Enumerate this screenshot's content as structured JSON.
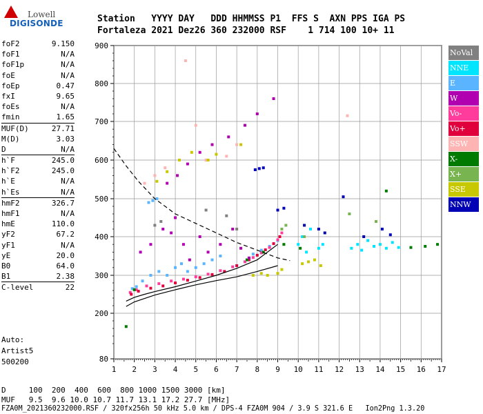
{
  "logo": {
    "line1": "Lowell",
    "line2": "DIGISONDE"
  },
  "header": {
    "labels": "Station   YYYY DAY   DDD HHMMSS P1  FFS S  AXN PPS IGA PS",
    "values": "Fortaleza 2021 Dez26 360 232000 RSF    1 714 100 10+ 11"
  },
  "params": [
    {
      "name": "foF2",
      "value": "9.150"
    },
    {
      "name": "foF1",
      "value": "N/A"
    },
    {
      "name": "foF1p",
      "value": "N/A"
    },
    {
      "name": "foE",
      "value": "N/A"
    },
    {
      "name": "foEp",
      "value": "0.47"
    },
    {
      "name": "fxI",
      "value": "9.65"
    },
    {
      "name": "foEs",
      "value": "N/A"
    },
    {
      "name": "fmin",
      "value": "1.65"
    },
    {
      "name": "MUF(D)",
      "value": "27.71"
    },
    {
      "name": "M(D)",
      "value": "3.03"
    },
    {
      "name": "D",
      "value": "N/A"
    },
    {
      "name": "h`F",
      "value": "245.0"
    },
    {
      "name": "h`F2",
      "value": "245.0"
    },
    {
      "name": "h`E",
      "value": "N/A"
    },
    {
      "name": "h`Es",
      "value": "N/A"
    },
    {
      "name": "hmF2",
      "value": "326.7"
    },
    {
      "name": "hmF1",
      "value": "N/A"
    },
    {
      "name": "hmE",
      "value": "110.0"
    },
    {
      "name": "yF2",
      "value": "67.2"
    },
    {
      "name": "yF1",
      "value": "N/A"
    },
    {
      "name": "yE",
      "value": "20.0"
    },
    {
      "name": "B0",
      "value": "64.0"
    },
    {
      "name": "B1",
      "value": "2.38"
    },
    {
      "name": "C-level",
      "value": "22"
    }
  ],
  "auto": {
    "line1": "Auto:",
    "line2": "Artist5",
    "line3": "500200"
  },
  "legend": [
    {
      "label": "NoVal",
      "bg": "#808080",
      "fg": "#ffffff"
    },
    {
      "label": "NNE",
      "bg": "#00e5ff",
      "fg": "#ffffff"
    },
    {
      "label": "E",
      "bg": "#5ab4ff",
      "fg": "#ffffff"
    },
    {
      "label": "W",
      "bg": "#b000b0",
      "fg": "#ffffff"
    },
    {
      "label": "Vo-",
      "bg": "#ff3c9c",
      "fg": "#ffffff"
    },
    {
      "label": "Vo+",
      "bg": "#e0003c",
      "fg": "#ffffff"
    },
    {
      "label": "SSW",
      "bg": "#ffb4b4",
      "fg": "#ffffff"
    },
    {
      "label": "X-",
      "bg": "#007a00",
      "fg": "#ffffff"
    },
    {
      "label": "X+",
      "bg": "#78b450",
      "fg": "#ffffff"
    },
    {
      "label": "SSE",
      "bg": "#c8c800",
      "fg": "#ffffff"
    },
    {
      "label": "NNW",
      "bg": "#0000b4",
      "fg": "#ffffff"
    }
  ],
  "footer": {
    "line1": "D     100  200  400  600  800 1000 1500 3000 [km]",
    "line2": "MUF   9.5  9.6 10.0 10.7 11.7 13.1 17.2 27.7 [MHz]",
    "line3": "FZA0M_2021360232000.RSF / 320fx256h 50 kHz 5.0 km / DPS-4 FZA0M 904 / 3.9 S 321.6 E   Ion2Png 1.3.20"
  },
  "chart_data": {
    "type": "scatter",
    "xlim": [
      1,
      17
    ],
    "ylim": [
      80,
      900
    ],
    "xticks": [
      1,
      2,
      3,
      4,
      5,
      6,
      7,
      8,
      9,
      10,
      11,
      12,
      13,
      14,
      15,
      16,
      17
    ],
    "yticks": [
      80,
      200,
      300,
      400,
      500,
      600,
      700,
      800,
      900
    ],
    "grid": true,
    "legend_placement": "right",
    "series": [
      {
        "name": "E",
        "color": "#5ab4ff",
        "points": [
          [
            1.9,
            265
          ],
          [
            2.1,
            270
          ],
          [
            2.4,
            285
          ],
          [
            2.8,
            300
          ],
          [
            3.2,
            310
          ],
          [
            3.6,
            300
          ],
          [
            4.0,
            320
          ],
          [
            4.3,
            330
          ],
          [
            4.6,
            310
          ],
          [
            5.0,
            320
          ],
          [
            5.4,
            330
          ],
          [
            5.8,
            340
          ],
          [
            6.2,
            350
          ],
          [
            2.7,
            490
          ],
          [
            2.9,
            495
          ],
          [
            3.1,
            500
          ],
          [
            7.8,
            355
          ],
          [
            8.2,
            365
          ],
          [
            8.6,
            375
          ],
          [
            9.0,
            390
          ]
        ]
      },
      {
        "name": "NNE",
        "color": "#00e5ff",
        "points": [
          [
            10.0,
            380
          ],
          [
            10.2,
            400
          ],
          [
            10.4,
            360
          ],
          [
            10.6,
            420
          ],
          [
            12.6,
            370
          ],
          [
            12.9,
            380
          ],
          [
            13.1,
            365
          ],
          [
            13.4,
            390
          ],
          [
            13.7,
            375
          ],
          [
            14.0,
            380
          ],
          [
            14.3,
            370
          ],
          [
            14.6,
            385
          ],
          [
            14.9,
            372
          ],
          [
            11.0,
            370
          ],
          [
            11.2,
            380
          ]
        ]
      },
      {
        "name": "Vo-",
        "color": "#ff3c9c",
        "points": [
          [
            1.8,
            255
          ],
          [
            2.1,
            262
          ],
          [
            2.6,
            272
          ],
          [
            3.2,
            278
          ],
          [
            3.8,
            285
          ],
          [
            4.4,
            290
          ],
          [
            5.0,
            296
          ],
          [
            5.6,
            303
          ],
          [
            6.2,
            312
          ],
          [
            6.8,
            322
          ],
          [
            7.4,
            335
          ],
          [
            7.8,
            346
          ],
          [
            8.2,
            358
          ],
          [
            8.6,
            372
          ],
          [
            9.0,
            392
          ],
          [
            9.2,
            410
          ]
        ]
      },
      {
        "name": "Vo+",
        "color": "#e0003c",
        "points": [
          [
            1.85,
            250
          ],
          [
            2.2,
            258
          ],
          [
            2.8,
            266
          ],
          [
            3.4,
            272
          ],
          [
            4.0,
            280
          ],
          [
            4.6,
            287
          ],
          [
            5.2,
            294
          ],
          [
            5.8,
            302
          ],
          [
            6.4,
            310
          ],
          [
            7.0,
            325
          ],
          [
            7.6,
            340
          ],
          [
            8.0,
            352
          ],
          [
            8.4,
            366
          ],
          [
            8.8,
            382
          ],
          [
            9.1,
            400
          ]
        ]
      },
      {
        "name": "X-",
        "color": "#007a00",
        "points": [
          [
            1.6,
            165
          ],
          [
            2.0,
            262
          ],
          [
            7.5,
            340
          ],
          [
            8.3,
            360
          ],
          [
            9.3,
            380
          ],
          [
            10.1,
            370
          ],
          [
            15.5,
            372
          ],
          [
            16.2,
            375
          ],
          [
            16.8,
            380
          ],
          [
            14.3,
            520
          ]
        ]
      },
      {
        "name": "X+",
        "color": "#78b450",
        "points": [
          [
            9.2,
            420
          ],
          [
            9.4,
            430
          ],
          [
            10.3,
            400
          ],
          [
            12.5,
            460
          ],
          [
            13.8,
            440
          ]
        ]
      },
      {
        "name": "W",
        "color": "#b000b0",
        "points": [
          [
            2.3,
            360
          ],
          [
            2.8,
            380
          ],
          [
            3.4,
            420
          ],
          [
            3.8,
            410
          ],
          [
            4.0,
            450
          ],
          [
            4.4,
            380
          ],
          [
            4.7,
            340
          ],
          [
            5.2,
            400
          ],
          [
            5.6,
            360
          ],
          [
            6.2,
            380
          ],
          [
            6.8,
            420
          ],
          [
            7.2,
            370
          ],
          [
            7.6,
            345
          ],
          [
            3.6,
            540
          ],
          [
            4.1,
            560
          ],
          [
            4.6,
            590
          ],
          [
            5.2,
            620
          ],
          [
            5.8,
            640
          ],
          [
            6.6,
            660
          ],
          [
            7.4,
            690
          ],
          [
            8.0,
            720
          ],
          [
            8.8,
            760
          ]
        ]
      },
      {
        "name": "SSW",
        "color": "#ffb4b4",
        "points": [
          [
            2.5,
            540
          ],
          [
            3.0,
            560
          ],
          [
            3.5,
            580
          ],
          [
            4.5,
            860
          ],
          [
            5.0,
            690
          ],
          [
            5.5,
            600
          ],
          [
            6.5,
            610
          ],
          [
            7.0,
            640
          ],
          [
            12.4,
            715
          ]
        ]
      },
      {
        "name": "SSE",
        "color": "#c8c800",
        "points": [
          [
            3.1,
            545
          ],
          [
            3.6,
            570
          ],
          [
            4.2,
            600
          ],
          [
            4.8,
            620
          ],
          [
            5.6,
            600
          ],
          [
            6.0,
            615
          ],
          [
            7.2,
            640
          ],
          [
            8.5,
            300
          ],
          [
            9.0,
            305
          ],
          [
            9.2,
            315
          ],
          [
            10.2,
            330
          ],
          [
            10.5,
            335
          ],
          [
            10.8,
            340
          ],
          [
            11.1,
            325
          ],
          [
            7.8,
            300
          ],
          [
            8.2,
            305
          ]
        ]
      },
      {
        "name": "NNW",
        "color": "#0000b4",
        "points": [
          [
            7.9,
            575
          ],
          [
            8.1,
            578
          ],
          [
            8.3,
            580
          ],
          [
            9.0,
            470
          ],
          [
            9.3,
            475
          ],
          [
            10.3,
            430
          ],
          [
            11.0,
            420
          ],
          [
            11.3,
            410
          ],
          [
            13.2,
            400
          ],
          [
            14.5,
            405
          ],
          [
            12.2,
            505
          ],
          [
            14.1,
            420
          ]
        ]
      },
      {
        "name": "NoVal",
        "color": "#808080",
        "points": [
          [
            3.0,
            430
          ],
          [
            3.3,
            440
          ],
          [
            5.5,
            470
          ],
          [
            6.5,
            455
          ],
          [
            7.0,
            420
          ]
        ]
      }
    ],
    "curves": [
      {
        "style": "solid",
        "color": "#000000",
        "points": [
          [
            1.6,
            218
          ],
          [
            2,
            230
          ],
          [
            3,
            248
          ],
          [
            4,
            262
          ],
          [
            5,
            275
          ],
          [
            6,
            286
          ],
          [
            7,
            296
          ],
          [
            8,
            310
          ],
          [
            9,
            325
          ]
        ]
      },
      {
        "style": "solid",
        "color": "#000000",
        "points": [
          [
            1.6,
            232
          ],
          [
            2,
            242
          ],
          [
            2.5,
            250
          ],
          [
            3,
            257
          ],
          [
            4,
            270
          ],
          [
            5,
            285
          ],
          [
            6,
            300
          ],
          [
            7,
            318
          ],
          [
            8,
            340
          ],
          [
            9,
            380
          ]
        ]
      },
      {
        "style": "dashed",
        "color": "#000000",
        "points": [
          [
            1.0,
            630
          ],
          [
            1.6,
            585
          ],
          [
            2.2,
            545
          ],
          [
            3,
            500
          ],
          [
            4,
            460
          ],
          [
            5,
            435
          ],
          [
            6,
            410
          ],
          [
            7,
            385
          ],
          [
            8,
            365
          ],
          [
            9,
            345
          ],
          [
            9.6,
            338
          ]
        ]
      }
    ]
  }
}
